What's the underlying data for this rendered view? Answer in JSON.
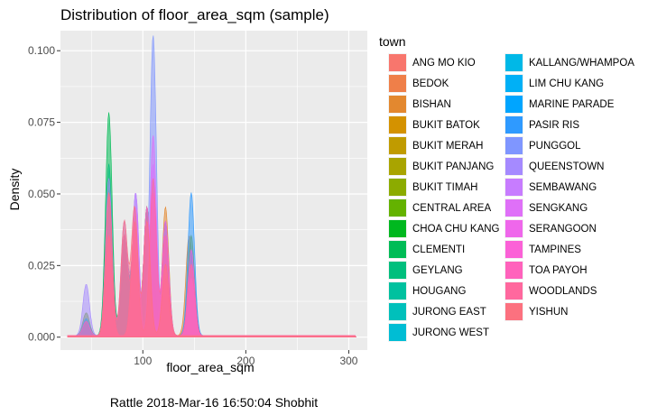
{
  "caption": "Rattle 2018-Mar-16 16:50:04 Shobhit",
  "chart_data": {
    "type": "area",
    "subtype": "density",
    "title": "Distribution of floor_area_sqm (sample)",
    "xlabel": "floor_area_sqm",
    "ylabel": "Density",
    "xlim": [
      20,
      318
    ],
    "ylim": [
      -0.0045,
      0.107
    ],
    "x_ticks": [
      100,
      200,
      300
    ],
    "y_ticks": [
      "0.000",
      "0.025",
      "0.050",
      "0.075",
      "0.100"
    ],
    "y_tick_values": [
      0,
      0.025,
      0.05,
      0.075,
      0.1
    ],
    "grid": true,
    "legend": {
      "title": "town",
      "position": "right"
    },
    "series": [
      {
        "name": "ANG MO KIO",
        "color": "#F8766D",
        "peaks": [
          [
            67,
            0.045
          ],
          [
            82,
            0.03
          ],
          [
            92,
            0.028
          ],
          [
            104,
            0.042
          ],
          [
            122,
            0.02
          ],
          [
            145,
            0.012
          ]
        ]
      },
      {
        "name": "BEDOK",
        "color": "#EF7F49",
        "peaks": [
          [
            67,
            0.05
          ],
          [
            82,
            0.035
          ],
          [
            92,
            0.03
          ],
          [
            104,
            0.045
          ],
          [
            122,
            0.022
          ],
          [
            147,
            0.01
          ]
        ]
      },
      {
        "name": "BISHAN",
        "color": "#E3882F",
        "peaks": [
          [
            67,
            0.02
          ],
          [
            92,
            0.03
          ],
          [
            104,
            0.04
          ],
          [
            122,
            0.045
          ],
          [
            145,
            0.035
          ]
        ]
      },
      {
        "name": "BUKIT BATOK",
        "color": "#D49200",
        "peaks": [
          [
            67,
            0.055
          ],
          [
            82,
            0.03
          ],
          [
            92,
            0.03
          ],
          [
            104,
            0.04
          ],
          [
            122,
            0.02
          ],
          [
            147,
            0.01
          ]
        ]
      },
      {
        "name": "BUKIT MERAH",
        "color": "#C09B00",
        "peaks": [
          [
            45,
            0.006
          ],
          [
            67,
            0.05
          ],
          [
            82,
            0.035
          ],
          [
            92,
            0.035
          ],
          [
            104,
            0.045
          ],
          [
            122,
            0.02
          ]
        ]
      },
      {
        "name": "BUKIT PANJANG",
        "color": "#A9A400",
        "peaks": [
          [
            67,
            0.035
          ],
          [
            92,
            0.035
          ],
          [
            110,
            0.05
          ],
          [
            122,
            0.03
          ],
          [
            147,
            0.02
          ]
        ]
      },
      {
        "name": "BUKIT TIMAH",
        "color": "#8CAB00",
        "peaks": [
          [
            67,
            0.015
          ],
          [
            92,
            0.02
          ],
          [
            122,
            0.03
          ],
          [
            147,
            0.035
          ]
        ]
      },
      {
        "name": "CENTRAL AREA",
        "color": "#64B200",
        "peaks": [
          [
            45,
            0.008
          ],
          [
            67,
            0.04
          ],
          [
            82,
            0.02
          ],
          [
            92,
            0.035
          ],
          [
            104,
            0.03
          ]
        ]
      },
      {
        "name": "CHOA CHU KANG",
        "color": "#00B81F",
        "peaks": [
          [
            67,
            0.03
          ],
          [
            92,
            0.025
          ],
          [
            110,
            0.045
          ],
          [
            122,
            0.03
          ],
          [
            147,
            0.025
          ]
        ]
      },
      {
        "name": "CLEMENTI",
        "color": "#00BC56",
        "peaks": [
          [
            67,
            0.078
          ],
          [
            82,
            0.035
          ],
          [
            92,
            0.03
          ],
          [
            104,
            0.045
          ],
          [
            122,
            0.02
          ]
        ]
      },
      {
        "name": "GEYLANG",
        "color": "#00BF7D",
        "peaks": [
          [
            45,
            0.005
          ],
          [
            67,
            0.06
          ],
          [
            82,
            0.035
          ],
          [
            92,
            0.035
          ],
          [
            104,
            0.04
          ],
          [
            122,
            0.02
          ]
        ]
      },
      {
        "name": "HOUGANG",
        "color": "#00C19F",
        "peaks": [
          [
            67,
            0.04
          ],
          [
            92,
            0.04
          ],
          [
            110,
            0.055
          ],
          [
            122,
            0.035
          ],
          [
            147,
            0.02
          ]
        ]
      },
      {
        "name": "JURONG EAST",
        "color": "#00C0BB",
        "peaks": [
          [
            67,
            0.045
          ],
          [
            92,
            0.035
          ],
          [
            104,
            0.04
          ],
          [
            122,
            0.03
          ],
          [
            147,
            0.02
          ]
        ]
      },
      {
        "name": "JURONG WEST",
        "color": "#00BDD4",
        "peaks": [
          [
            67,
            0.035
          ],
          [
            92,
            0.035
          ],
          [
            110,
            0.05
          ],
          [
            122,
            0.035
          ],
          [
            147,
            0.03
          ]
        ]
      },
      {
        "name": "KALLANG/WHAMPOA",
        "color": "#00B8E7",
        "peaks": [
          [
            45,
            0.006
          ],
          [
            67,
            0.05
          ],
          [
            82,
            0.035
          ],
          [
            92,
            0.035
          ],
          [
            104,
            0.04
          ],
          [
            122,
            0.02
          ]
        ]
      },
      {
        "name": "LIM CHU KANG",
        "color": "#00B0F6",
        "peaks": [
          [
            67,
            0.01
          ],
          [
            110,
            0.02
          ]
        ]
      },
      {
        "name": "MARINE PARADE",
        "color": "#00A5FF",
        "peaks": [
          [
            67,
            0.04
          ],
          [
            92,
            0.03
          ],
          [
            104,
            0.035
          ],
          [
            122,
            0.02
          ]
        ]
      },
      {
        "name": "PASIR RIS",
        "color": "#2F9AFF",
        "peaks": [
          [
            110,
            0.045
          ],
          [
            122,
            0.04
          ],
          [
            147,
            0.05
          ]
        ]
      },
      {
        "name": "PUNGGOL",
        "color": "#7F96FF",
        "peaks": [
          [
            67,
            0.035
          ],
          [
            93,
            0.05
          ],
          [
            110,
            0.105
          ],
          [
            147,
            0.02
          ]
        ]
      },
      {
        "name": "QUEENSTOWN",
        "color": "#A58AFF",
        "peaks": [
          [
            45,
            0.018
          ],
          [
            67,
            0.055
          ],
          [
            82,
            0.04
          ],
          [
            92,
            0.035
          ],
          [
            104,
            0.045
          ],
          [
            122,
            0.02
          ]
        ]
      },
      {
        "name": "SEMBAWANG",
        "color": "#C77CFF",
        "peaks": [
          [
            67,
            0.02
          ],
          [
            93,
            0.05
          ],
          [
            110,
            0.06
          ],
          [
            122,
            0.025
          ],
          [
            147,
            0.02
          ]
        ]
      },
      {
        "name": "SENGKANG",
        "color": "#DF70F8",
        "peaks": [
          [
            67,
            0.03
          ],
          [
            93,
            0.045
          ],
          [
            110,
            0.07
          ],
          [
            122,
            0.025
          ],
          [
            147,
            0.02
          ]
        ]
      },
      {
        "name": "SERANGOON",
        "color": "#EF67EB",
        "peaks": [
          [
            67,
            0.03
          ],
          [
            92,
            0.035
          ],
          [
            104,
            0.04
          ],
          [
            122,
            0.035
          ],
          [
            147,
            0.025
          ]
        ]
      },
      {
        "name": "TAMPINES",
        "color": "#FB61D7",
        "peaks": [
          [
            67,
            0.035
          ],
          [
            92,
            0.04
          ],
          [
            110,
            0.05
          ],
          [
            122,
            0.04
          ],
          [
            147,
            0.03
          ]
        ]
      },
      {
        "name": "TOA PAYOH",
        "color": "#FF62BC",
        "peaks": [
          [
            45,
            0.005
          ],
          [
            67,
            0.05
          ],
          [
            82,
            0.035
          ],
          [
            92,
            0.03
          ],
          [
            104,
            0.045
          ],
          [
            122,
            0.02
          ]
        ]
      },
      {
        "name": "WOODLANDS",
        "color": "#FF689E",
        "peaks": [
          [
            67,
            0.035
          ],
          [
            92,
            0.04
          ],
          [
            110,
            0.055
          ],
          [
            122,
            0.035
          ],
          [
            147,
            0.025
          ]
        ]
      },
      {
        "name": "YISHUN",
        "color": "#FC717F",
        "peaks": [
          [
            67,
            0.05
          ],
          [
            82,
            0.04
          ],
          [
            92,
            0.045
          ],
          [
            104,
            0.04
          ],
          [
            122,
            0.025
          ]
        ]
      }
    ]
  }
}
